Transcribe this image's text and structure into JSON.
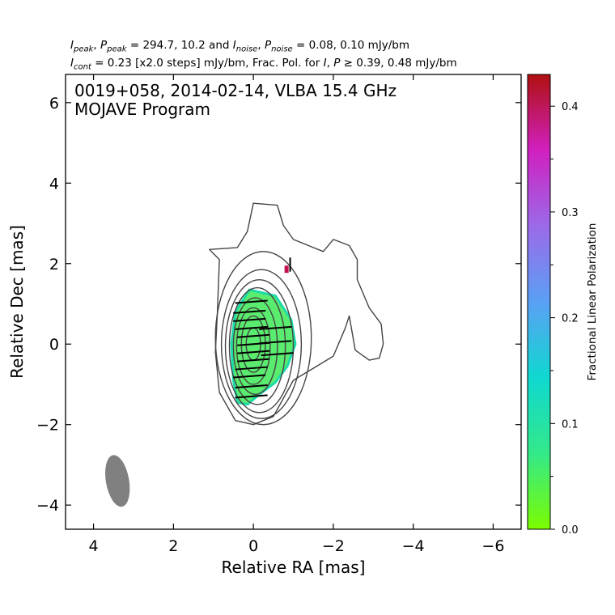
{
  "header": {
    "line1": {
      "i": "I",
      "i_sub": "peak",
      "p": "P",
      "p_sub": "peak",
      "vals": " = 294.7, 10.2 and ",
      "i2": "I",
      "i2_sub": "noise",
      "p2": "P",
      "p2_sub": "noise",
      "vals2": " = 0.08, 0.10 mJy/bm"
    },
    "line2": {
      "i": "I",
      "i_sub": "cont",
      "text1": " = 0.23 [x2.0 steps] mJy/bm, Frac. Pol. for ",
      "i2": "I",
      "p": "P",
      "text2": " ≥ 0.39, 0.48 mJy/bm"
    }
  },
  "panel": {
    "line1": "0019+058, 2014-02-14, VLBA 15.4 GHz",
    "line2": "MOJAVE Program"
  },
  "chart_data": {
    "type": "contour",
    "xlabel": "Relative RA [mas]",
    "ylabel": "Relative Dec [mas]",
    "xlim": [
      4.7,
      -6.7
    ],
    "ylim": [
      -4.6,
      6.7
    ],
    "xticks": [
      4,
      2,
      0,
      -2,
      -4,
      -6
    ],
    "xtick_labels": [
      "4",
      "2",
      "0",
      "−2",
      "−4",
      "−6"
    ],
    "yticks": [
      -4,
      -2,
      0,
      2,
      4,
      6
    ],
    "ytick_labels": [
      "−4",
      "−2",
      "0",
      "2",
      "4",
      "6"
    ],
    "grid": false,
    "peaks": {
      "I_peak_mJy_per_bm": 294.7,
      "P_peak_mJy_per_bm": 10.2,
      "I_noise_mJy_per_bm": 0.08,
      "P_noise_mJy_per_bm": 0.1
    },
    "contours": {
      "base_mJy_per_bm": 0.23,
      "step_factor": 2.0
    },
    "frac_pol_threshold": {
      "I_mJy_per_bm": 0.39,
      "P_mJy_per_bm": 0.48
    },
    "contour_color": "#444444",
    "outer_contour": [
      [
        0.0,
        3.5
      ],
      [
        -0.6,
        3.45
      ],
      [
        -0.75,
        2.95
      ],
      [
        -1.0,
        2.6
      ],
      [
        -1.5,
        2.4
      ],
      [
        -1.75,
        2.3
      ],
      [
        -2.0,
        2.6
      ],
      [
        -2.4,
        2.45
      ],
      [
        -2.6,
        2.1
      ],
      [
        -2.6,
        1.6
      ],
      [
        -2.9,
        0.9
      ],
      [
        -3.2,
        0.5
      ],
      [
        -3.25,
        0.0
      ],
      [
        -3.15,
        -0.35
      ],
      [
        -2.9,
        -0.4
      ],
      [
        -2.55,
        -0.15
      ],
      [
        -2.4,
        0.7
      ],
      [
        -2.3,
        0.4
      ],
      [
        -2.0,
        -0.3
      ],
      [
        -1.5,
        -0.6
      ],
      [
        -1.0,
        -0.9
      ],
      [
        -0.5,
        -1.8
      ],
      [
        0.0,
        -2.0
      ],
      [
        0.45,
        -1.9
      ],
      [
        0.85,
        -1.2
      ],
      [
        0.95,
        -0.2
      ],
      [
        0.9,
        0.8
      ],
      [
        0.85,
        2.1
      ],
      [
        1.1,
        2.35
      ],
      [
        0.4,
        2.4
      ],
      [
        0.15,
        2.8
      ]
    ],
    "inner_contours": [
      {
        "cx": -0.25,
        "cy": 0.15,
        "rx": 1.2,
        "ry": 2.15
      },
      {
        "cx": -0.2,
        "cy": 0.0,
        "rx": 1.0,
        "ry": 1.85
      },
      {
        "cx": -0.15,
        "cy": -0.05,
        "rx": 0.85,
        "ry": 1.65
      },
      {
        "cx": -0.1,
        "cy": -0.05,
        "rx": 0.7,
        "ry": 1.45
      },
      {
        "cx": -0.05,
        "cy": -0.05,
        "rx": 0.55,
        "ry": 1.2
      },
      {
        "cx": 0.0,
        "cy": -0.05,
        "rx": 0.42,
        "ry": 0.95
      },
      {
        "cx": 0.0,
        "cy": 0.0,
        "rx": 0.3,
        "ry": 0.7
      },
      {
        "cx": 0.0,
        "cy": 0.0,
        "rx": 0.18,
        "ry": 0.4
      }
    ],
    "fracpol_region": [
      [
        0.1,
        1.35
      ],
      [
        -0.55,
        1.2
      ],
      [
        -0.95,
        0.6
      ],
      [
        -1.05,
        0.0
      ],
      [
        -0.85,
        -0.55
      ],
      [
        -0.55,
        -0.95
      ],
      [
        -0.15,
        -1.25
      ],
      [
        0.15,
        -1.5
      ],
      [
        0.4,
        -1.45
      ],
      [
        0.5,
        -0.9
      ],
      [
        0.55,
        0.0
      ],
      [
        0.45,
        0.8
      ]
    ],
    "fracpol_value": 0.05,
    "fracpol_color": "#5aec6e",
    "fracpol_edge_color": "#1bdca8",
    "evpa_ticks": [
      [
        0.05,
        1.05
      ],
      [
        0.1,
        0.8
      ],
      [
        0.1,
        0.6
      ],
      [
        0.05,
        0.4
      ],
      [
        0.0,
        0.2
      ],
      [
        0.0,
        0.0
      ],
      [
        0.0,
        -0.2
      ],
      [
        0.0,
        -0.4
      ],
      [
        0.05,
        -0.6
      ],
      [
        0.1,
        -0.8
      ],
      [
        0.05,
        -1.05
      ],
      [
        0.05,
        -1.3
      ],
      [
        -0.55,
        0.4
      ],
      [
        -0.55,
        0.05
      ],
      [
        -0.6,
        -0.25
      ]
    ],
    "beam": {
      "x": 3.4,
      "y": -3.4,
      "major_mas": 1.3,
      "minor_mas": 0.58,
      "pa_deg": -10,
      "color": "#808080"
    },
    "colorbar": {
      "label": "Fractional Linear Polarization",
      "vmin": 0.0,
      "vmax": 0.43,
      "ticks": [
        0.0,
        0.1,
        0.2,
        0.3,
        0.4
      ],
      "tick_labels": [
        "0.0",
        "0.1",
        "0.2",
        "0.3",
        "0.4"
      ],
      "minor_ticks": [
        0.05,
        0.15,
        0.25,
        0.35
      ],
      "colormap": [
        "#7cfc00",
        "#33e98a",
        "#0fd8d0",
        "#5aa0f5",
        "#9b6ae8",
        "#d020c0",
        "#b01010"
      ]
    }
  }
}
